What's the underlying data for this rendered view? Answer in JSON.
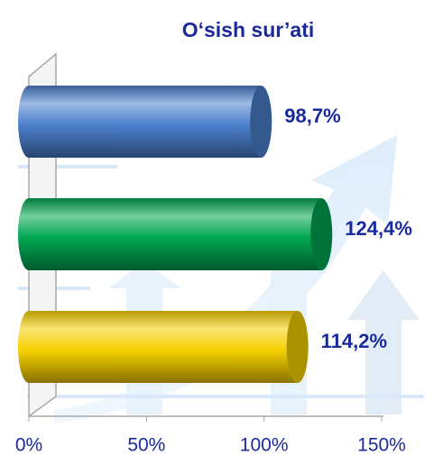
{
  "chart_data": {
    "type": "bar",
    "orientation": "horizontal",
    "title": "O‘sish sur’ati",
    "categories": [
      null,
      null,
      null
    ],
    "values": [
      98.7,
      124.4,
      114.2
    ],
    "value_labels": [
      "98,7%",
      "124,4%",
      "114,2%"
    ],
    "colors": [
      "#4a7fcc",
      "#00a650",
      "#f5d000"
    ],
    "xlim": [
      0,
      150
    ],
    "xticks": [
      {
        "value": 0,
        "label": "0%"
      },
      {
        "value": 50,
        "label": "50%"
      },
      {
        "value": 100,
        "label": "100%"
      },
      {
        "value": 150,
        "label": "150%"
      }
    ],
    "grid": false
  }
}
